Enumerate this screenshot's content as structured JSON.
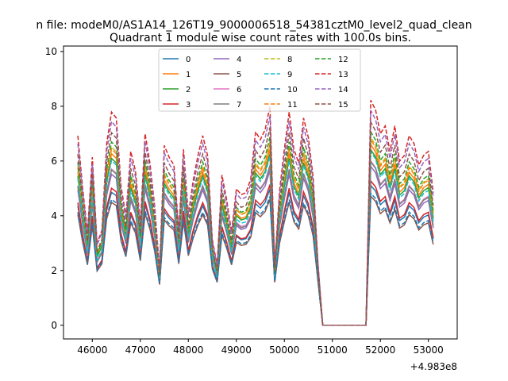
{
  "figure": {
    "suptitle": "n file: modeM0/AS1A14_126T19_9000006518_54381cztM0_level2_quad_clean",
    "offset_label": "+4.983e8"
  },
  "chart_data": {
    "type": "line",
    "title": "Quadrant 1 module wise count rates with 100.0s bins.",
    "xlabel": "",
    "ylabel": "",
    "x_offset": 498300000,
    "xlim": [
      45400,
      53600
    ],
    "ylim": [
      -0.5,
      10.2
    ],
    "xticks": [
      46000,
      47000,
      48000,
      49000,
      50000,
      51000,
      52000,
      53000
    ],
    "yticks": [
      0,
      2,
      4,
      6,
      8,
      10
    ],
    "grid": false,
    "legend": {
      "placement": "top-center",
      "ncol": 4
    },
    "x": [
      45700,
      45800,
      45900,
      46000,
      46100,
      46200,
      46300,
      46400,
      46500,
      46600,
      46700,
      46800,
      46900,
      47000,
      47100,
      47200,
      47300,
      47400,
      47500,
      47600,
      47700,
      47800,
      47900,
      48000,
      48100,
      48200,
      48300,
      48400,
      48500,
      48600,
      48700,
      48800,
      48900,
      49000,
      49100,
      49200,
      49300,
      49400,
      49500,
      49600,
      49700,
      49800,
      49900,
      50000,
      50100,
      50200,
      50300,
      50400,
      50500,
      50600,
      50700,
      50800,
      50900,
      51000,
      51100,
      51200,
      51300,
      51400,
      51500,
      51600,
      51700,
      51800,
      51900,
      52000,
      52100,
      52200,
      52300,
      52400,
      52500,
      52600,
      52700,
      52800,
      52900,
      53000,
      53100
    ],
    "profile": [
      0.7,
      0.43,
      0.21,
      0.59,
      0.15,
      0.22,
      0.66,
      0.82,
      0.79,
      0.44,
      0.29,
      0.62,
      0.52,
      0.25,
      0.71,
      0.56,
      0.34,
      0.02,
      0.65,
      0.59,
      0.55,
      0.22,
      0.63,
      0.3,
      0.47,
      0.6,
      0.7,
      0.6,
      0.17,
      0.04,
      0.5,
      0.37,
      0.21,
      0.43,
      0.4,
      0.41,
      0.48,
      0.72,
      0.68,
      0.73,
      0.85,
      0.04,
      0.42,
      0.63,
      0.82,
      0.63,
      0.56,
      0.79,
      0.69,
      0.49,
      0.05,
      0,
      0,
      0,
      0,
      0,
      0,
      0,
      0,
      0,
      0,
      0.88,
      0.83,
      0.71,
      0.75,
      0.62,
      0.75,
      0.57,
      0.6,
      0.7,
      0.66,
      0.55,
      0.6,
      0.62,
      0.41
    ],
    "series": [
      {
        "name": "0",
        "color": "#1f77b4",
        "dashed": false,
        "base": 4.2,
        "amp": 5.6
      },
      {
        "name": "1",
        "color": "#ff7f0e",
        "dashed": false,
        "base": 4.5,
        "amp": 7.2
      },
      {
        "name": "2",
        "color": "#2ca02c",
        "dashed": false,
        "base": 4.4,
        "amp": 6.9
      },
      {
        "name": "3",
        "color": "#d62728",
        "dashed": false,
        "base": 4.0,
        "amp": 5.8
      },
      {
        "name": "4",
        "color": "#9467bd",
        "dashed": false,
        "base": 4.3,
        "amp": 6.3
      },
      {
        "name": "5",
        "color": "#8c564b",
        "dashed": false,
        "base": 3.6,
        "amp": 5.0
      },
      {
        "name": "6",
        "color": "#e377c2",
        "dashed": false,
        "base": 4.6,
        "amp": 6.6
      },
      {
        "name": "7",
        "color": "#7f7f7f",
        "dashed": false,
        "base": 4.2,
        "amp": 6.5
      },
      {
        "name": "8",
        "color": "#bcbd22",
        "dashed": true,
        "base": 4.5,
        "amp": 7.4
      },
      {
        "name": "9",
        "color": "#17becf",
        "dashed": true,
        "base": 4.4,
        "amp": 7.0
      },
      {
        "name": "10",
        "color": "#1f77b4",
        "dashed": true,
        "base": 3.9,
        "amp": 5.2
      },
      {
        "name": "11",
        "color": "#ff7f0e",
        "dashed": true,
        "base": 4.6,
        "amp": 7.3
      },
      {
        "name": "12",
        "color": "#2ca02c",
        "dashed": true,
        "base": 4.8,
        "amp": 7.8
      },
      {
        "name": "13",
        "color": "#d62728",
        "dashed": true,
        "base": 5.2,
        "amp": 9.0
      },
      {
        "name": "14",
        "color": "#9467bd",
        "dashed": true,
        "base": 5.0,
        "amp": 8.5
      },
      {
        "name": "15",
        "color": "#8c564b",
        "dashed": true,
        "base": 4.9,
        "amp": 8.2
      }
    ]
  }
}
